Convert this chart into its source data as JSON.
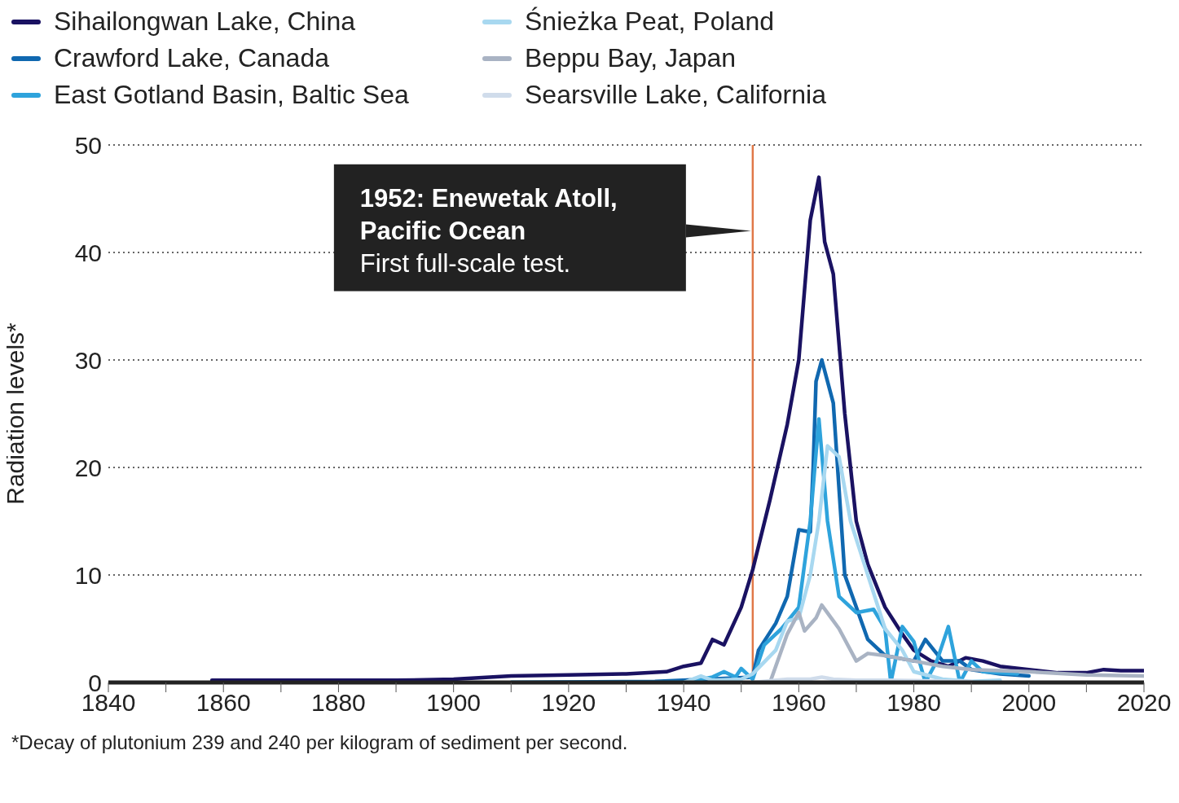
{
  "chart_data": {
    "type": "line",
    "ylabel": "Radiation levels*",
    "xlim": [
      1840,
      2020
    ],
    "xticks": [
      1840,
      {
        "value": 1850,
        "label": null
      },
      1860,
      {
        "value": 1870,
        "label": null
      },
      1880,
      {
        "value": 1890,
        "label": null
      },
      1900,
      {
        "value": 1910,
        "label": null
      },
      1920,
      {
        "value": 1930,
        "label": null
      },
      1940,
      {
        "value": 1950,
        "label": null
      },
      1960,
      {
        "value": 1970,
        "label": null
      },
      1980,
      {
        "value": 1990,
        "label": null
      },
      2000,
      {
        "value": 2010,
        "label": null
      },
      2020
    ],
    "ylim": [
      0,
      50
    ],
    "yticks": [
      0,
      10,
      20,
      30,
      40,
      50
    ],
    "grid": "y",
    "legend": "top",
    "marker": "none",
    "line_style": "solid",
    "series": [
      {
        "name": "Sihailongwan Lake, China",
        "color": "#1a1262",
        "x": [
          1858,
          1890,
          1900,
          1910,
          1920,
          1930,
          1937,
          1940,
          1943,
          1945,
          1947,
          1950,
          1952,
          1955,
          1958,
          1960,
          1962,
          1963.5,
          1964.5,
          1966,
          1968,
          1970,
          1972,
          1975,
          1978,
          1980,
          1983,
          1986,
          1989,
          1992,
          1995,
          2000,
          2005,
          2010,
          2013,
          2016,
          2020
        ],
        "values": [
          0.2,
          0.2,
          0.3,
          0.6,
          0.7,
          0.8,
          1.0,
          1.5,
          1.8,
          4.0,
          3.5,
          7,
          10.5,
          17,
          24,
          30,
          43,
          47,
          41,
          38,
          25,
          15,
          11,
          7,
          4.5,
          3,
          2,
          1.5,
          2.3,
          2,
          1.5,
          1.2,
          0.9,
          0.9,
          1.2,
          1.1,
          1.1
        ]
      },
      {
        "name": "Crawford Lake, Canada",
        "color": "#1068b0",
        "x": [
          1910,
          1935,
          1948,
          1952,
          1953,
          1956,
          1958,
          1960,
          1962,
          1962.5,
          1963,
          1964,
          1966,
          1968,
          1970,
          1972,
          1975,
          1980,
          1982,
          1985,
          1988,
          1990,
          1995,
          2000
        ],
        "values": [
          0,
          0.1,
          0.4,
          0.5,
          3,
          5.5,
          8,
          14.2,
          14,
          20,
          28,
          30,
          26,
          10,
          7,
          4,
          2.5,
          2,
          4,
          2,
          2,
          1.2,
          0.8,
          0.6
        ]
      },
      {
        "name": "East Gotland Basin, Baltic Sea",
        "color": "#2ea3dc",
        "x": [
          1910,
          1940,
          1945,
          1947,
          1949,
          1950,
          1952,
          1954,
          1957,
          1960,
          1962,
          1963.5,
          1965,
          1967,
          1970,
          1973,
          1975,
          1976,
          1978,
          1980,
          1982,
          1984,
          1986,
          1988,
          1990,
          1992,
          1998
        ],
        "values": [
          0,
          0,
          0.5,
          1.0,
          0.5,
          1.3,
          0.3,
          3.5,
          5,
          7,
          15,
          24.5,
          15,
          8,
          6.5,
          6.8,
          5,
          0,
          5.2,
          3.8,
          0,
          2,
          5.2,
          0,
          2,
          1,
          0.8
        ]
      },
      {
        "name": "Śnieżka Peat, Poland",
        "color": "#a8d8f0",
        "x": [
          1940,
          1943,
          1945,
          1950,
          1952,
          1956,
          1958,
          1960,
          1962,
          1963.5,
          1965,
          1967,
          1969,
          1972,
          1975,
          1978,
          1980,
          1985,
          1990,
          1995
        ],
        "values": [
          0,
          0.6,
          0.2,
          0.3,
          0.8,
          3,
          5.7,
          6,
          10,
          15,
          22,
          21,
          15,
          10,
          5,
          3,
          1,
          0.3,
          0.1,
          0.2
        ]
      },
      {
        "name": "Beppu Bay, Japan",
        "color": "#a9b3c3",
        "x": [
          1952,
          1955,
          1958,
          1960,
          1961,
          1963,
          1964,
          1967,
          1970,
          1972,
          1975,
          1980,
          1985,
          1990,
          2000,
          2010,
          2020
        ],
        "values": [
          0,
          0,
          4.5,
          6.5,
          4.8,
          6,
          7.2,
          5,
          2,
          2.7,
          2.5,
          2,
          1.5,
          1.2,
          1,
          0.7,
          0.6
        ]
      },
      {
        "name": "Searsville Lake, California",
        "color": "#d0dceb",
        "x": [
          1952,
          1958,
          1962,
          1964,
          1966,
          1970,
          1975,
          1990
        ],
        "values": [
          0,
          0.3,
          0.3,
          0.5,
          0.3,
          0.2,
          0.2,
          0.1
        ]
      }
    ],
    "ref_lines": [
      {
        "axis": "x",
        "value": 1952,
        "color": "#e07848",
        "line_style": "solid"
      }
    ],
    "annotations": [
      "1952: Enewetak Atoll, Pacific Ocean",
      "First full-scale test.",
      "*Decay of plutonium 239 and 240 per kilogram of sediment per second."
    ]
  }
}
